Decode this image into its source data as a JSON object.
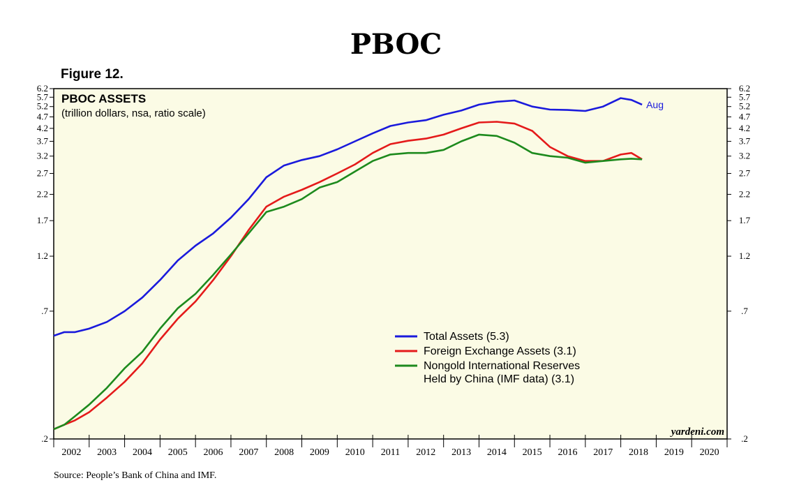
{
  "header": {
    "title": "PBOC",
    "figure_label": "Figure 12."
  },
  "footer": {
    "source": "Source: People’s Bank of China and IMF.",
    "credit": "yardeni.com"
  },
  "colors": {
    "plot_background": "#fbfbe5",
    "total_assets": "#1a1adc",
    "foreign_exchange": "#e41a1a",
    "nongold_reserves": "#1d8a1d"
  },
  "chart_data": {
    "type": "line",
    "title": "PBOC ASSETS",
    "subtitle": "(trillion dollars, nsa, ratio scale)",
    "scale": "log",
    "ylim": [
      0.2,
      6.2
    ],
    "xlim": [
      2002.0,
      2021.0
    ],
    "yticks": [
      0.2,
      0.7,
      1.2,
      1.7,
      2.2,
      2.7,
      3.2,
      3.7,
      4.2,
      4.7,
      5.2,
      5.7,
      6.2
    ],
    "ytick_labels": [
      ".2",
      ".7",
      "1.2",
      "1.7",
      "2.2",
      "2.7",
      "3.2",
      "3.7",
      "4.2",
      "4.7",
      "5.2",
      "5.7",
      "6.2"
    ],
    "years": [
      "2002",
      "2003",
      "2004",
      "2005",
      "2006",
      "2007",
      "2008",
      "2009",
      "2010",
      "2011",
      "2012",
      "2013",
      "2014",
      "2015",
      "2016",
      "2017",
      "2018",
      "2019",
      "2020"
    ],
    "end_annotation": "Aug",
    "series": [
      {
        "name": "Total Assets (5.3)",
        "color_key": "total_assets",
        "x": [
          2002.0,
          2002.3,
          2002.6,
          2003.0,
          2003.5,
          2004.0,
          2004.5,
          2005.0,
          2005.5,
          2006.0,
          2006.5,
          2007.0,
          2007.5,
          2008.0,
          2008.5,
          2009.0,
          2009.5,
          2010.0,
          2010.5,
          2011.0,
          2011.5,
          2012.0,
          2012.5,
          2013.0,
          2013.5,
          2014.0,
          2014.5,
          2015.0,
          2015.5,
          2016.0,
          2016.5,
          2017.0,
          2017.5,
          2018.0,
          2018.3,
          2018.6
        ],
        "values": [
          0.55,
          0.57,
          0.57,
          0.59,
          0.63,
          0.7,
          0.8,
          0.95,
          1.15,
          1.33,
          1.5,
          1.75,
          2.1,
          2.6,
          2.92,
          3.08,
          3.2,
          3.42,
          3.7,
          4.0,
          4.3,
          4.45,
          4.55,
          4.8,
          5.0,
          5.3,
          5.45,
          5.52,
          5.2,
          5.05,
          5.03,
          4.98,
          5.2,
          5.65,
          5.55,
          5.3
        ]
      },
      {
        "name": "Foreign Exchange Assets (3.1)",
        "color_key": "foreign_exchange",
        "x": [
          2002.0,
          2002.3,
          2002.6,
          2003.0,
          2003.5,
          2004.0,
          2004.5,
          2005.0,
          2005.5,
          2006.0,
          2006.5,
          2007.0,
          2007.5,
          2008.0,
          2008.5,
          2009.0,
          2009.5,
          2010.0,
          2010.5,
          2011.0,
          2011.5,
          2012.0,
          2012.5,
          2013.0,
          2013.5,
          2014.0,
          2014.5,
          2015.0,
          2015.5,
          2016.0,
          2016.5,
          2017.0,
          2017.5,
          2018.0,
          2018.3,
          2018.6
        ],
        "values": [
          0.22,
          0.23,
          0.24,
          0.26,
          0.3,
          0.35,
          0.42,
          0.53,
          0.65,
          0.77,
          0.95,
          1.2,
          1.55,
          1.95,
          2.15,
          2.3,
          2.48,
          2.7,
          2.95,
          3.3,
          3.6,
          3.72,
          3.8,
          3.95,
          4.2,
          4.45,
          4.48,
          4.4,
          4.1,
          3.5,
          3.2,
          3.05,
          3.05,
          3.25,
          3.3,
          3.1
        ]
      },
      {
        "name": "Nongold International Reserves Held by China (IMF data) (3.1)",
        "color_key": "nongold_reserves",
        "x": [
          2002.0,
          2002.3,
          2002.6,
          2003.0,
          2003.5,
          2004.0,
          2004.5,
          2005.0,
          2005.5,
          2006.0,
          2006.5,
          2007.0,
          2007.5,
          2008.0,
          2008.5,
          2009.0,
          2009.5,
          2010.0,
          2010.5,
          2011.0,
          2011.5,
          2012.0,
          2012.5,
          2013.0,
          2013.5,
          2014.0,
          2014.5,
          2015.0,
          2015.5,
          2016.0,
          2016.5,
          2017.0,
          2017.5,
          2018.0,
          2018.3,
          2018.6
        ],
        "values": [
          0.22,
          0.23,
          0.25,
          0.28,
          0.33,
          0.4,
          0.47,
          0.59,
          0.72,
          0.83,
          1.0,
          1.22,
          1.5,
          1.85,
          1.95,
          2.1,
          2.35,
          2.48,
          2.75,
          3.05,
          3.25,
          3.3,
          3.3,
          3.4,
          3.7,
          3.95,
          3.9,
          3.65,
          3.3,
          3.2,
          3.15,
          3.0,
          3.05,
          3.1,
          3.12,
          3.1
        ]
      }
    ],
    "legend": {
      "position": "lower-right-center",
      "entries": [
        {
          "lines": [
            "Total Assets (5.3)"
          ],
          "color_key": "total_assets"
        },
        {
          "lines": [
            "Foreign Exchange Assets (3.1)"
          ],
          "color_key": "foreign_exchange"
        },
        {
          "lines": [
            "Nongold International Reserves",
            "Held by China (IMF data) (3.1)"
          ],
          "color_key": "nongold_reserves"
        }
      ]
    }
  }
}
